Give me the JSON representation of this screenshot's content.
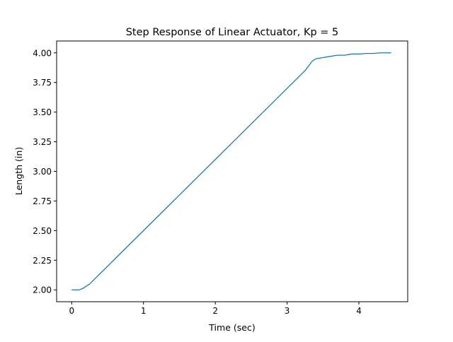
{
  "chart_data": {
    "type": "line",
    "title": "Step Response of Linear Actuator, Kp = 5",
    "xlabel": "Time (sec)",
    "ylabel": "Length (in)",
    "xlim": [
      -0.21,
      4.68
    ],
    "ylim": [
      1.9,
      4.1
    ],
    "xticks": [
      0,
      1,
      2,
      3,
      4
    ],
    "xtick_labels": [
      "0",
      "1",
      "2",
      "3",
      "4"
    ],
    "yticks": [
      2.0,
      2.25,
      2.5,
      2.75,
      3.0,
      3.25,
      3.5,
      3.75,
      4.0
    ],
    "ytick_labels": [
      "2.00",
      "2.25",
      "2.50",
      "2.75",
      "3.00",
      "3.25",
      "3.50",
      "3.75",
      "4.00"
    ],
    "grid": false,
    "line_color": "#1f77b4",
    "series": [
      {
        "x": [
          0.0,
          0.05,
          0.1,
          0.15,
          0.2,
          0.25,
          0.3,
          0.35,
          0.4,
          0.5,
          0.6,
          0.8,
          1.0,
          1.2,
          1.4,
          1.6,
          1.8,
          2.0,
          2.2,
          2.4,
          2.6,
          2.8,
          3.0,
          3.1,
          3.2,
          3.25,
          3.3,
          3.35,
          3.4,
          3.5,
          3.6,
          3.7,
          3.8,
          3.9,
          4.0,
          4.1,
          4.2,
          4.3,
          4.45
        ],
        "y": [
          2.0,
          2.0,
          2.0,
          2.01,
          2.03,
          2.05,
          2.08,
          2.11,
          2.14,
          2.2,
          2.26,
          2.38,
          2.5,
          2.62,
          2.74,
          2.86,
          2.98,
          3.1,
          3.22,
          3.34,
          3.46,
          3.58,
          3.7,
          3.76,
          3.82,
          3.85,
          3.89,
          3.93,
          3.95,
          3.96,
          3.97,
          3.98,
          3.98,
          3.99,
          3.99,
          3.995,
          3.995,
          4.0,
          4.0
        ]
      }
    ]
  }
}
